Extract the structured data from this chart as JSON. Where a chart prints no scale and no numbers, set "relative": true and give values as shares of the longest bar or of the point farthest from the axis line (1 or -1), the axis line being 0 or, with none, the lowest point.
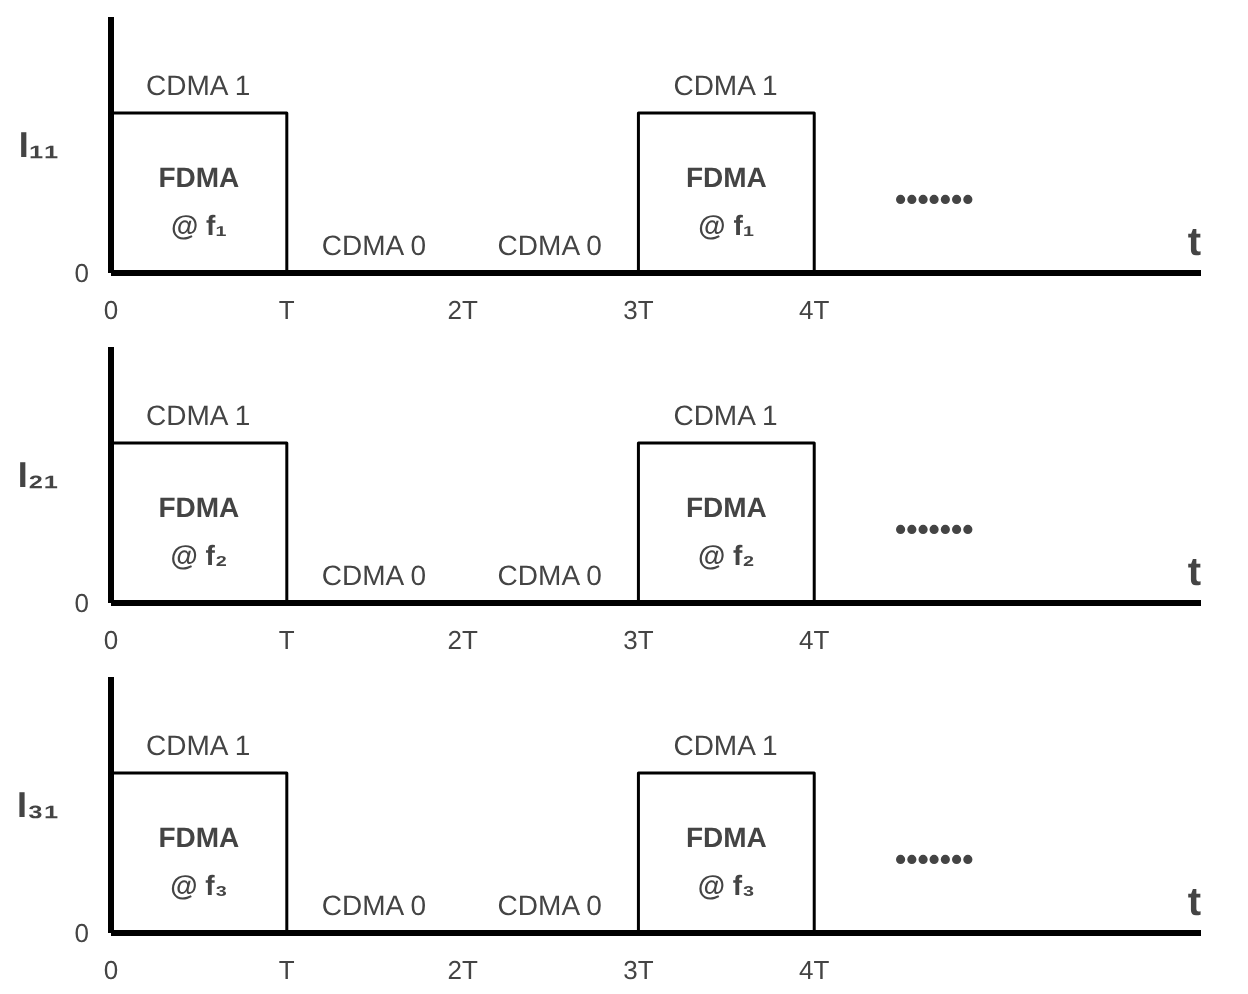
{
  "chart_data": [
    {
      "type": "step",
      "relative": true,
      "ylabel": "I₁₁",
      "xlabel": "t",
      "x": [
        0,
        1,
        2,
        3,
        4
      ],
      "values": [
        1,
        0,
        0,
        1,
        0
      ],
      "color": "#000000",
      "xlim": [
        0,
        6.2
      ],
      "xticks": [
        0,
        {
          "value": 1,
          "label": "T"
        },
        {
          "value": 2,
          "label": "2T"
        },
        {
          "value": 3,
          "label": "3T"
        },
        {
          "value": 4,
          "label": "4T"
        }
      ],
      "grid": false,
      "annotations": [
        "0",
        "FDMA",
        "@ f₁",
        "FDMA",
        "@ f₁",
        "•••••••",
        {
          "text": "CDMA 1",
          "x": 0.5,
          "y": 1
        },
        {
          "text": "CDMA 1",
          "x": 3.5,
          "y": 1
        },
        {
          "text": "CDMA 0",
          "x": 1.5,
          "y": 0
        },
        {
          "text": "CDMA 0",
          "x": 2.5,
          "y": 0
        }
      ]
    },
    {
      "type": "step",
      "relative": true,
      "ylabel": "I₂₁",
      "xlabel": "t",
      "x": [
        0,
        1,
        2,
        3,
        4
      ],
      "values": [
        1,
        0,
        0,
        1,
        0
      ],
      "color": "#000000",
      "xlim": [
        0,
        6.2
      ],
      "xticks": [
        0,
        {
          "value": 1,
          "label": "T"
        },
        {
          "value": 2,
          "label": "2T"
        },
        {
          "value": 3,
          "label": "3T"
        },
        {
          "value": 4,
          "label": "4T"
        }
      ],
      "grid": false,
      "annotations": [
        "0",
        "FDMA",
        "@ f₂",
        "FDMA",
        "@ f₂",
        "•••••••",
        {
          "text": "CDMA 1",
          "x": 0.5,
          "y": 1
        },
        {
          "text": "CDMA 1",
          "x": 3.5,
          "y": 1
        },
        {
          "text": "CDMA 0",
          "x": 1.5,
          "y": 0
        },
        {
          "text": "CDMA 0",
          "x": 2.5,
          "y": 0
        }
      ]
    },
    {
      "type": "step",
      "relative": true,
      "ylabel": "I₃₁",
      "xlabel": "t",
      "x": [
        0,
        1,
        2,
        3,
        4
      ],
      "values": [
        1,
        0,
        0,
        1,
        0
      ],
      "color": "#000000",
      "xlim": [
        0,
        6.2
      ],
      "xticks": [
        0,
        {
          "value": 1,
          "label": "T"
        },
        {
          "value": 2,
          "label": "2T"
        },
        {
          "value": 3,
          "label": "3T"
        },
        {
          "value": 4,
          "label": "4T"
        }
      ],
      "grid": false,
      "annotations": [
        "0",
        "FDMA",
        "@ f₃",
        "FDMA",
        "@ f₃",
        "•••••••",
        {
          "text": "CDMA 1",
          "x": 0.5,
          "y": 1
        },
        {
          "text": "CDMA 1",
          "x": 3.5,
          "y": 1
        },
        {
          "text": "CDMA 0",
          "x": 1.5,
          "y": 0
        },
        {
          "text": "CDMA 0",
          "x": 2.5,
          "y": 0
        }
      ]
    }
  ]
}
